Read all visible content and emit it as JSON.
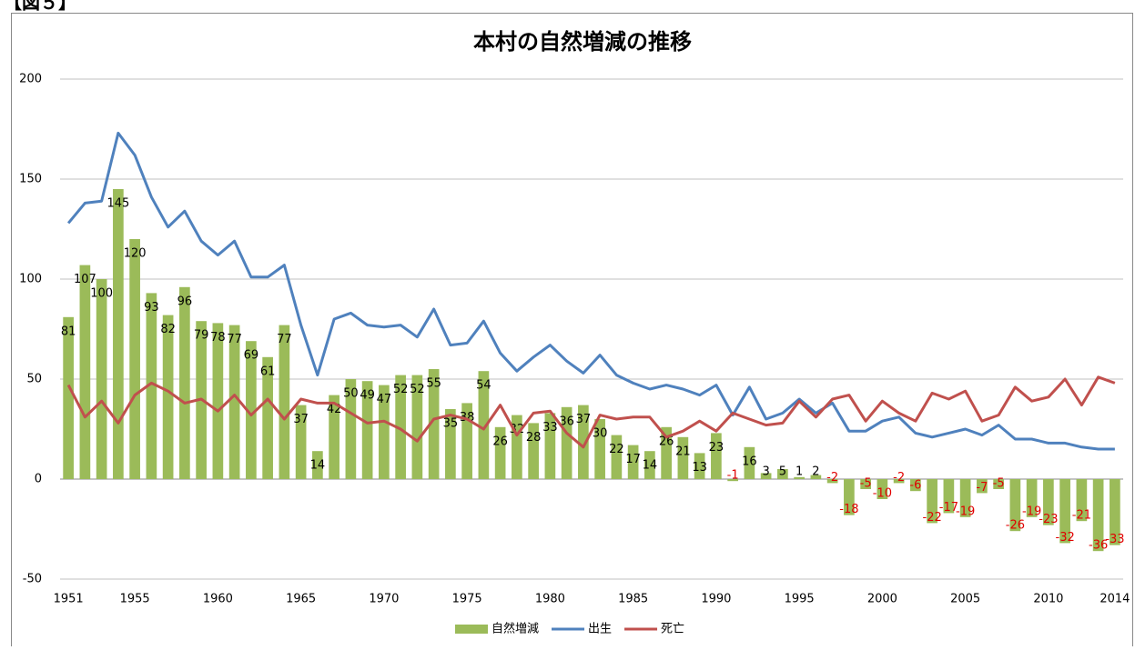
{
  "figure_label": "【図５】",
  "chart_data": {
    "type": "combo",
    "title": "本村の自然増減の推移",
    "categories": [
      "1951",
      null,
      null,
      null,
      "1955",
      null,
      null,
      null,
      null,
      "1960",
      null,
      null,
      null,
      null,
      "1965",
      null,
      null,
      null,
      null,
      "1970",
      null,
      null,
      null,
      null,
      "1975",
      null,
      null,
      null,
      null,
      "1980",
      null,
      null,
      null,
      null,
      "1985",
      null,
      null,
      null,
      null,
      "1990",
      null,
      null,
      null,
      null,
      "1995",
      null,
      null,
      null,
      null,
      "2000",
      null,
      null,
      null,
      null,
      "2005",
      null,
      null,
      null,
      null,
      "2010",
      null,
      null,
      null,
      "2014"
    ],
    "series": [
      {
        "name": "自然増減",
        "type": "bar",
        "color": "#9bbb59",
        "negative_label_color": "#e00000",
        "values": [
          81,
          107,
          100,
          145,
          120,
          93,
          82,
          96,
          79,
          78,
          77,
          69,
          61,
          77,
          37,
          14,
          42,
          50,
          49,
          47,
          52,
          52,
          55,
          35,
          38,
          54,
          26,
          32,
          28,
          33,
          36,
          37,
          30,
          22,
          17,
          14,
          26,
          21,
          13,
          23,
          -1,
          16,
          3,
          5,
          1,
          2,
          -2,
          -18,
          -5,
          -10,
          -2,
          -6,
          -22,
          -17,
          -19,
          -7,
          -5,
          -26,
          -19,
          -23,
          -32,
          -21,
          -36,
          -33
        ]
      },
      {
        "name": "出生",
        "type": "line",
        "color": "#4f81bd",
        "values": [
          128,
          138,
          139,
          173,
          162,
          141,
          126,
          134,
          119,
          112,
          119,
          101,
          101,
          107,
          77,
          52,
          80,
          83,
          77,
          76,
          77,
          71,
          85,
          67,
          68,
          79,
          63,
          54,
          61,
          67,
          59,
          53,
          62,
          52,
          48,
          45,
          47,
          45,
          42,
          47,
          32,
          46,
          30,
          33,
          40,
          33,
          38,
          24,
          24,
          29,
          31,
          23,
          21,
          23,
          25,
          22,
          27,
          20,
          20,
          18,
          18,
          16,
          15,
          15
        ]
      },
      {
        "name": "死亡",
        "type": "line",
        "color": "#c0504d",
        "values": [
          47,
          31,
          39,
          28,
          42,
          48,
          44,
          38,
          40,
          34,
          42,
          32,
          40,
          30,
          40,
          38,
          38,
          33,
          28,
          29,
          25,
          19,
          30,
          32,
          30,
          25,
          37,
          22,
          33,
          34,
          23,
          16,
          32,
          30,
          31,
          31,
          21,
          24,
          29,
          24,
          33,
          30,
          27,
          28,
          39,
          31,
          40,
          42,
          29,
          39,
          33,
          29,
          43,
          40,
          44,
          29,
          32,
          46,
          39,
          41,
          50,
          37,
          51,
          48
        ]
      }
    ],
    "ylim": [
      -50,
      200
    ],
    "yticks": [
      -50,
      0,
      50,
      100,
      150,
      200
    ],
    "grid": true,
    "legend": "bottom"
  }
}
